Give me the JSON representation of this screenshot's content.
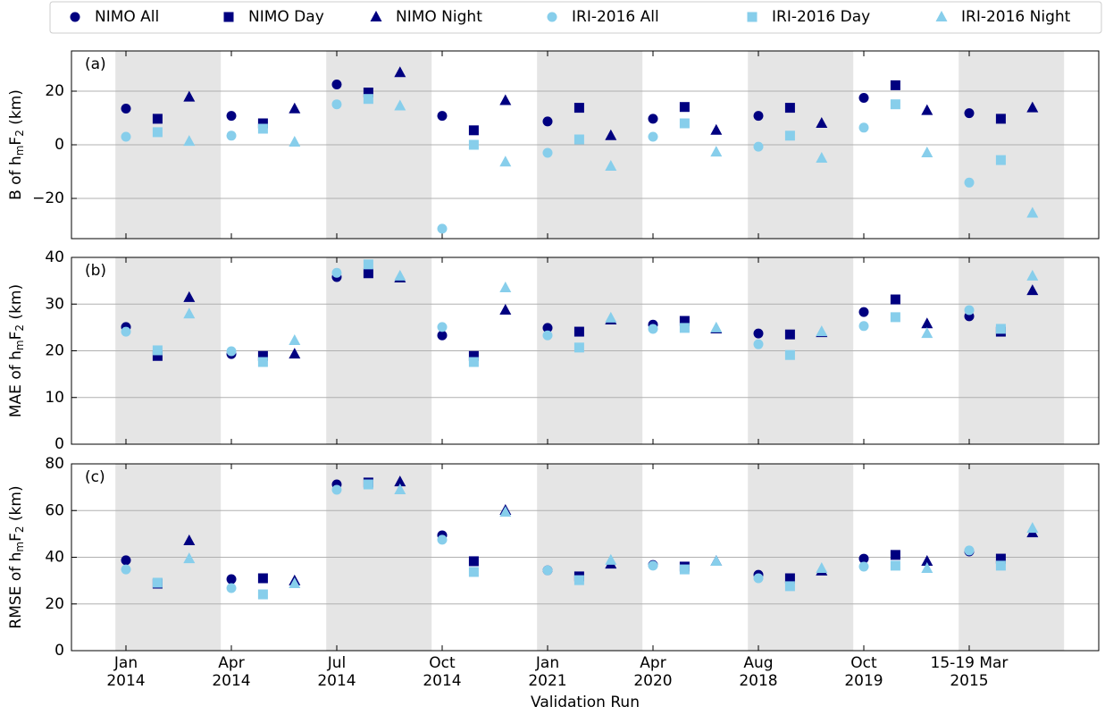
{
  "chart_data": {
    "type": "scatter",
    "xlabel": "Validation Run",
    "categories": [
      [
        "Jan",
        "2014"
      ],
      [
        "Apr",
        "2014"
      ],
      [
        "Jul",
        "2014"
      ],
      [
        "Oct",
        "2014"
      ],
      [
        "Jan",
        "2021"
      ],
      [
        "Apr",
        "2020"
      ],
      [
        "Aug",
        "2018"
      ],
      [
        "Oct",
        "2019"
      ],
      [
        "15-19 Mar",
        "2015"
      ]
    ],
    "series": [
      {
        "name": "NIMO All",
        "color": "#000080",
        "marker": "circle"
      },
      {
        "name": "NIMO Day",
        "color": "#000080",
        "marker": "square"
      },
      {
        "name": "NIMO Night",
        "color": "#000080",
        "marker": "triangle"
      },
      {
        "name": "IRI-2016 All",
        "color": "#87ceeb",
        "marker": "circle"
      },
      {
        "name": "IRI-2016 Day",
        "color": "#87ceeb",
        "marker": "square"
      },
      {
        "name": "IRI-2016 Night",
        "color": "#87ceeb",
        "marker": "triangle"
      }
    ],
    "grid": true,
    "panels": [
      {
        "panel_label": "(a)",
        "ylabel": [
          "B of h",
          "m",
          "F",
          "2",
          " (km)"
        ],
        "ylim": [
          -35,
          35
        ],
        "yticks": [
          {
            "value": -20,
            "label": "−20"
          },
          0,
          20
        ],
        "series": [
          {
            "values": [
              13.5,
              10.8,
              22.5,
              10.8,
              8.7,
              9.7,
              10.8,
              17.5,
              11.8
            ]
          },
          {
            "values": [
              9.7,
              8,
              19.5,
              5.4,
              13.8,
              14.1,
              13.8,
              22.2,
              9.7
            ]
          },
          {
            "values": [
              17.8,
              13.4,
              26.9,
              16.5,
              3.4,
              5.4,
              8,
              12.8,
              13.8
            ]
          },
          {
            "values": [
              3,
              3.4,
              15.1,
              -31.3,
              -3,
              3,
              -0.7,
              6.4,
              -14.1
            ]
          },
          {
            "values": [
              4.7,
              6,
              17.1,
              0,
              2,
              8,
              3.4,
              15.1,
              -5.7
            ]
          },
          {
            "values": [
              1.3,
              1,
              14.5,
              -6.4,
              -8,
              -2.7,
              -5,
              -3,
              -25.5
            ]
          }
        ]
      },
      {
        "panel_label": "(b)",
        "ylabel": [
          "MAE of h",
          "m",
          "F",
          "2",
          " (km)"
        ],
        "ylim": [
          0,
          40
        ],
        "yticks": [
          0,
          10,
          20,
          30,
          40
        ],
        "series": [
          {
            "values": [
              25.1,
              19.3,
              35.8,
              23.3,
              24.9,
              25.6,
              23.7,
              28.3,
              27.4
            ]
          },
          {
            "values": [
              18.9,
              18.9,
              36.6,
              18.9,
              24.1,
              26.4,
              23.5,
              31,
              24.1
            ]
          },
          {
            "values": [
              31.4,
              19.3,
              35.6,
              28.7,
              26.6,
              24.7,
              23.9,
              25.8,
              32.9
            ]
          },
          {
            "values": [
              24.1,
              19.9,
              36.7,
              25.1,
              23.3,
              24.7,
              21.4,
              25.3,
              28.7
            ]
          },
          {
            "values": [
              20.1,
              17.6,
              38.5,
              17.6,
              20.7,
              24.9,
              19.1,
              27.2,
              24.7
            ]
          },
          {
            "values": [
              27.9,
              22.2,
              36,
              33.5,
              27,
              24.9,
              24.1,
              23.7,
              36
            ]
          }
        ]
      },
      {
        "panel_label": "(c)",
        "ylabel": [
          "RMSE of h",
          "m",
          "F",
          "2",
          " (km)"
        ],
        "ylim": [
          0,
          80
        ],
        "yticks": [
          0,
          20,
          40,
          60,
          80
        ],
        "series": [
          {
            "values": [
              38.7,
              30.6,
              71.2,
              49.4,
              34.4,
              36.7,
              32.5,
              39.4,
              42.5
            ]
          },
          {
            "values": [
              28.7,
              31,
              72,
              38.3,
              31.8,
              36,
              31,
              41,
              39.4
            ]
          },
          {
            "values": [
              47.1,
              29.9,
              72.3,
              60.1,
              37.1,
              38.3,
              34.1,
              38.3,
              50.5
            ]
          },
          {
            "values": [
              34.8,
              26.8,
              68.9,
              47.5,
              34.4,
              36.4,
              31,
              36,
              42.9
            ]
          },
          {
            "values": [
              29.1,
              24.1,
              71.2,
              33.7,
              30.2,
              34.8,
              27.6,
              36.4,
              36.4
            ]
          },
          {
            "values": [
              39.4,
              28.7,
              68.9,
              59.3,
              38.7,
              38.3,
              35.2,
              35.2,
              52.4
            ]
          }
        ]
      }
    ]
  }
}
